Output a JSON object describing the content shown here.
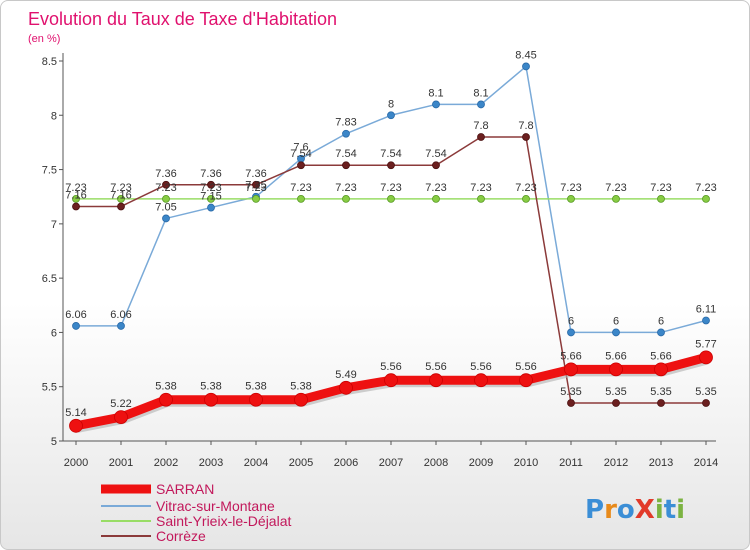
{
  "title": "Evolution du Taux de Taxe d'Habitation",
  "subtitle": "(en %)",
  "logo": {
    "text": "ProXiti",
    "colors": [
      "#3b8ed6",
      "#e88a1a",
      "#3b8ed6",
      "#e23a2a",
      "#7cb342",
      "#3b8ed6",
      "#7cb342"
    ]
  },
  "chart_data": {
    "type": "line",
    "title": "Evolution du Taux de Taxe d'Habitation",
    "ylabel": "(en %)",
    "xlabel": "",
    "x": [
      "2000",
      "2001",
      "2002",
      "2003",
      "2004",
      "2005",
      "2006",
      "2007",
      "2008",
      "2009",
      "2010",
      "2011",
      "2012",
      "2013",
      "2014"
    ],
    "ylim": [
      5,
      8.5
    ],
    "yticks": [
      "5",
      "5.5",
      "6",
      "6.5",
      "7",
      "7.5",
      "8",
      "8.5"
    ],
    "grid": false,
    "legend_position": "bottom-left",
    "series": [
      {
        "name": "SARRAN",
        "color": "#ee1111",
        "values": [
          5.14,
          5.22,
          5.38,
          5.38,
          5.38,
          5.38,
          5.49,
          5.56,
          5.56,
          5.56,
          5.56,
          5.66,
          5.66,
          5.66,
          5.77
        ],
        "labels": [
          "5.14",
          "5.22",
          "5.38",
          "5.38",
          "5.38",
          "5.38",
          "5.49",
          "5.56",
          "5.56",
          "5.56",
          "5.56",
          "5.66",
          "5.66",
          "5.66",
          "5.77"
        ]
      },
      {
        "name": "Vitrac-sur-Montane",
        "color": "#7aaad8",
        "values": [
          6.06,
          6.06,
          7.05,
          7.15,
          7.25,
          7.6,
          7.83,
          8.0,
          8.1,
          8.1,
          8.45,
          6.0,
          6.0,
          6.0,
          6.11
        ],
        "labels": [
          "6.06",
          "6.06",
          "7.05",
          "7.15",
          "7.25",
          "7.6",
          "7.83",
          "8",
          "8.1",
          "8.1",
          "8.45",
          "6",
          "6",
          "6",
          "6.11"
        ]
      },
      {
        "name": "Saint-Yrieix-le-Déjalat",
        "color": "#99dd66",
        "values": [
          7.23,
          7.23,
          7.23,
          7.23,
          7.23,
          7.23,
          7.23,
          7.23,
          7.23,
          7.23,
          7.23,
          7.23,
          7.23,
          7.23,
          7.23
        ],
        "labels": [
          "7.23",
          "7.23",
          "7.23",
          "7.23",
          "7.23",
          "7.23",
          "7.23",
          "7.23",
          "7.23",
          "7.23",
          "7.23",
          "7.23",
          "7.23",
          "7.23",
          "7.23"
        ]
      },
      {
        "name": "Corrèze",
        "color": "#8b3a3a",
        "values": [
          7.16,
          7.16,
          7.36,
          7.36,
          7.36,
          7.54,
          7.54,
          7.54,
          7.54,
          7.8,
          7.8,
          5.35,
          5.35,
          5.35,
          5.35
        ],
        "labels": [
          "7.16",
          "7.16",
          "7.36",
          "7.36",
          "7.36",
          "7.54",
          "7.54",
          "7.54",
          "7.54",
          "7.8",
          "7.8",
          "5.35",
          "5.35",
          "5.35",
          "5.35"
        ]
      }
    ]
  }
}
